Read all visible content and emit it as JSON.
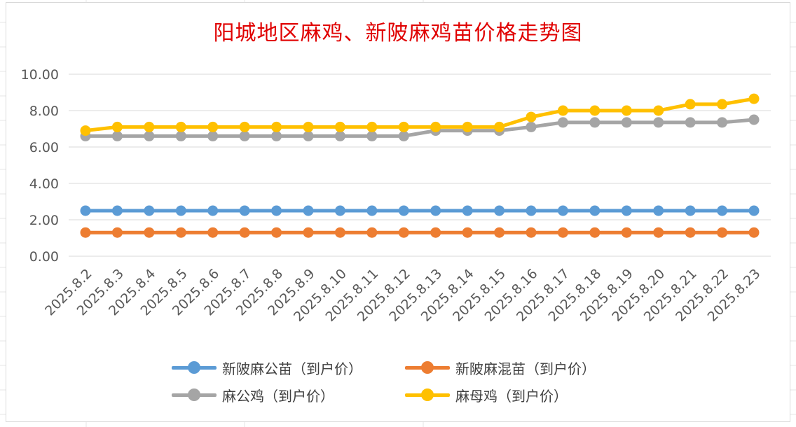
{
  "chart_data": {
    "type": "line",
    "title": "阳城地区麻鸡、新陂麻鸡苗价格走势图",
    "xlabel": "",
    "ylabel": "",
    "ylim": [
      0,
      10
    ],
    "y_ticks": [
      "10.00",
      "8.00",
      "6.00",
      "4.00",
      "2.00",
      "0.00"
    ],
    "y_tick_values": [
      10,
      8,
      6,
      4,
      2,
      0
    ],
    "grid": true,
    "legend_position": "bottom",
    "categories": [
      "2025.8.2",
      "2025.8.3",
      "2025.8.4",
      "2025.8.5",
      "2025.8.6",
      "2025.8.7",
      "2025.8.8",
      "2025.8.9",
      "2025.8.10",
      "2025.8.11",
      "2025.8.12",
      "2025.8.13",
      "2025.8.14",
      "2025.8.15",
      "2025.8.16",
      "2025.8.17",
      "2025.8.18",
      "2025.8.19",
      "2025.8.20",
      "2025.8.21",
      "2025.8.22",
      "2025.8.23"
    ],
    "series": [
      {
        "name": "新陂麻公苗（到户价）",
        "color": "#5b9bd5",
        "values": [
          2.5,
          2.5,
          2.5,
          2.5,
          2.5,
          2.5,
          2.5,
          2.5,
          2.5,
          2.5,
          2.5,
          2.5,
          2.5,
          2.5,
          2.5,
          2.5,
          2.5,
          2.5,
          2.5,
          2.5,
          2.5,
          2.5
        ]
      },
      {
        "name": "新陂麻混苗（到户价）",
        "color": "#ed7d31",
        "values": [
          1.3,
          1.3,
          1.3,
          1.3,
          1.3,
          1.3,
          1.3,
          1.3,
          1.3,
          1.3,
          1.3,
          1.3,
          1.3,
          1.3,
          1.3,
          1.3,
          1.3,
          1.3,
          1.3,
          1.3,
          1.3,
          1.3
        ]
      },
      {
        "name": "麻公鸡（到户价）",
        "color": "#a5a5a5",
        "values": [
          6.6,
          6.6,
          6.6,
          6.6,
          6.6,
          6.6,
          6.6,
          6.6,
          6.6,
          6.6,
          6.6,
          6.9,
          6.9,
          6.9,
          7.1,
          7.35,
          7.35,
          7.35,
          7.35,
          7.35,
          7.35,
          7.5
        ]
      },
      {
        "name": "麻母鸡（到户价）",
        "color": "#ffc000",
        "values": [
          6.9,
          7.1,
          7.1,
          7.1,
          7.1,
          7.1,
          7.1,
          7.1,
          7.1,
          7.1,
          7.1,
          7.1,
          7.1,
          7.1,
          7.65,
          8.0,
          8.0,
          8.0,
          8.0,
          8.35,
          8.35,
          8.65
        ]
      }
    ]
  }
}
